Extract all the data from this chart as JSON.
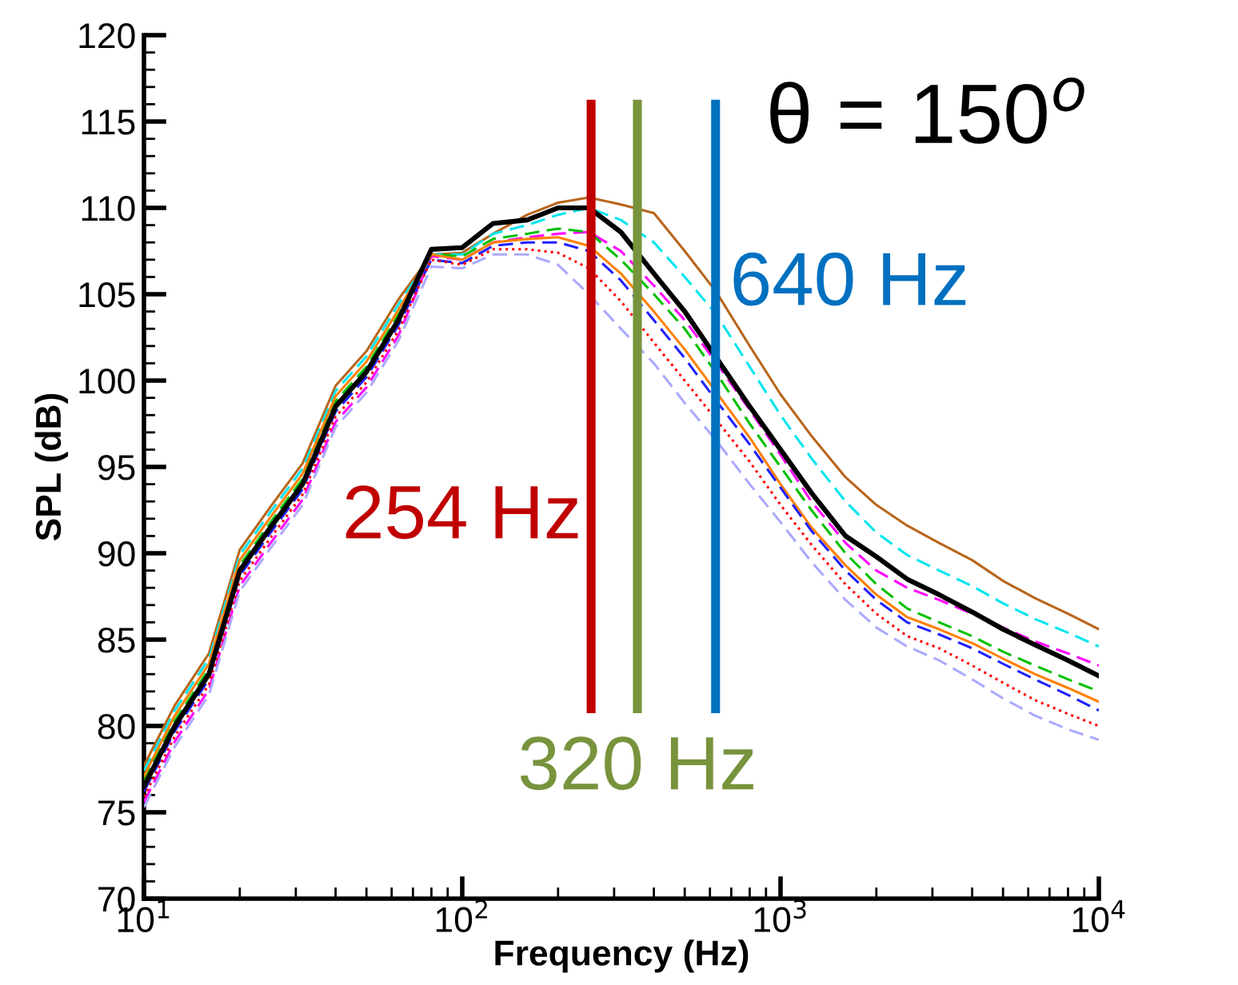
{
  "chart_data": {
    "type": "line",
    "xlabel": "Frequency (Hz)",
    "ylabel": "SPL (dB)",
    "log": "x",
    "grid": false,
    "legend": false,
    "xlim": [
      10,
      10000
    ],
    "ylim": [
      70,
      120
    ],
    "xticks": [
      {
        "value": 10,
        "label": "10$^{1}$"
      },
      {
        "value": 100,
        "label": "10$^{2}$"
      },
      {
        "value": 1000,
        "label": "10$^{3}$"
      },
      {
        "value": 10000,
        "label": "10$^{4}$"
      }
    ],
    "yticks": [
      70,
      75,
      80,
      85,
      90,
      95,
      100,
      105,
      110,
      115,
      120
    ],
    "x": [
      10,
      12.5,
      16,
      20,
      25,
      31.5,
      40,
      50,
      63,
      80,
      100,
      125,
      160,
      200,
      250,
      315,
      400,
      500,
      630,
      800,
      1000,
      1250,
      1600,
      2000,
      2500,
      3150,
      4000,
      5000,
      6300,
      8000,
      10000
    ],
    "series": [
      {
        "color": "#b8651b",
        "line_style": "solid",
        "values": [
          77.7,
          81.2,
          84.2,
          90.2,
          92.7,
          95.2,
          99.7,
          101.7,
          104.7,
          107.3,
          107.4,
          108.5,
          109.6,
          110.3,
          110.6,
          110.2,
          109.7,
          107.5,
          105.1,
          102,
          99.2,
          96.8,
          94.4,
          92.8,
          91.6,
          90.6,
          89.6,
          88.4,
          87.4,
          86.5,
          85.6
        ]
      },
      {
        "color": "#00e5ee",
        "line_style": "dashed",
        "values": [
          77.4,
          80.9,
          83.9,
          89.9,
          92.4,
          94.9,
          99.4,
          101.4,
          104.4,
          107.3,
          107.3,
          108.5,
          109,
          109.6,
          110,
          109.3,
          108,
          106,
          103.8,
          100.8,
          98,
          95.5,
          93,
          91.2,
          89.9,
          89,
          88.1,
          87.1,
          86.2,
          85.4,
          84.6
        ]
      },
      {
        "color": "#ff00ff",
        "line_style": "dashed",
        "values": [
          75.6,
          79.1,
          82.1,
          88.1,
          90.6,
          93.1,
          97.6,
          99.6,
          102.6,
          107.2,
          107,
          108,
          108.3,
          108.5,
          108.6,
          107.5,
          105.5,
          103.5,
          101,
          98.3,
          95.7,
          93,
          90.6,
          89,
          88,
          87.3,
          86.5,
          85.7,
          84.9,
          84.2,
          83.5
        ]
      },
      {
        "color": "#00c000",
        "line_style": "dashed",
        "values": [
          76.8,
          80.3,
          83.3,
          89.3,
          91.8,
          94.3,
          98.8,
          100.8,
          103.8,
          107.3,
          107.2,
          108.2,
          108.5,
          108.8,
          108.6,
          107,
          105,
          103,
          100.4,
          97.5,
          95,
          92.5,
          90,
          88.2,
          86.8,
          86,
          85.2,
          84.3,
          83.5,
          82.7,
          82
        ]
      },
      {
        "color": "#ff8000",
        "line_style": "solid",
        "values": [
          77.1,
          80.6,
          83.6,
          89.6,
          92.1,
          94.6,
          99.1,
          101.1,
          104.1,
          107.3,
          107,
          108,
          108.2,
          108.3,
          107.8,
          106.2,
          104,
          101.8,
          99.3,
          96.7,
          94,
          91.5,
          89.3,
          87.6,
          86.3,
          85.6,
          84.8,
          83.9,
          83,
          82.2,
          81.4
        ]
      },
      {
        "color": "#2020ff",
        "line_style": "dashed",
        "values": [
          76.2,
          79.7,
          82.7,
          88.7,
          91.2,
          93.7,
          98.2,
          100.2,
          103.2,
          107,
          106.8,
          107.8,
          108,
          108,
          107.5,
          105.8,
          103.5,
          101.3,
          98.8,
          96.3,
          93.8,
          91.3,
          89,
          87.3,
          86,
          85.3,
          84.5,
          83.6,
          82.7,
          81.8,
          80.9
        ]
      },
      {
        "color": "#ff0000",
        "line_style": "dotted",
        "values": [
          75.9,
          79.4,
          82.4,
          88.4,
          90.9,
          93.4,
          97.9,
          99.9,
          102.9,
          107,
          106.7,
          107.6,
          107.6,
          107.4,
          106.5,
          104.6,
          102.2,
          100,
          97.7,
          95.3,
          92.8,
          90.5,
          88.2,
          86.5,
          85.2,
          84.5,
          83.5,
          82.5,
          81.5,
          80.7,
          80
        ]
      },
      {
        "color": "#aaaaff",
        "line_style": "dashed",
        "values": [
          75.3,
          78.8,
          81.8,
          87.8,
          90.3,
          92.8,
          97.3,
          99.3,
          102.3,
          106.6,
          106.5,
          107.3,
          107.3,
          106.7,
          105,
          103,
          101,
          98.7,
          96.5,
          94,
          91.8,
          89.5,
          87.3,
          85.7,
          84.6,
          83.8,
          82.7,
          81.6,
          80.6,
          79.8,
          79.2
        ]
      },
      {
        "color": "#000000",
        "line_style": "solid",
        "values": [
          76.5,
          80,
          83,
          89,
          91.5,
          94,
          98.5,
          100.5,
          103.5,
          107.6,
          107.7,
          109.1,
          109.3,
          110,
          110,
          108.6,
          106.2,
          104,
          101.3,
          98.5,
          96,
          93.5,
          91,
          89.8,
          88.5,
          87.6,
          86.6,
          85.6,
          84.7,
          83.8,
          82.9
        ]
      }
    ],
    "ref_lines": [
      {
        "axis": "x",
        "value": 254,
        "label": "254 Hz",
        "color": "#c00000"
      },
      {
        "axis": "x",
        "value": 355,
        "label": "320 Hz",
        "color": "#77933c"
      },
      {
        "axis": "x",
        "value": 625,
        "label": "640 Hz",
        "color": "#0070c0"
      }
    ],
    "annotations": [
      "θ = 150$^{o}$"
    ]
  }
}
